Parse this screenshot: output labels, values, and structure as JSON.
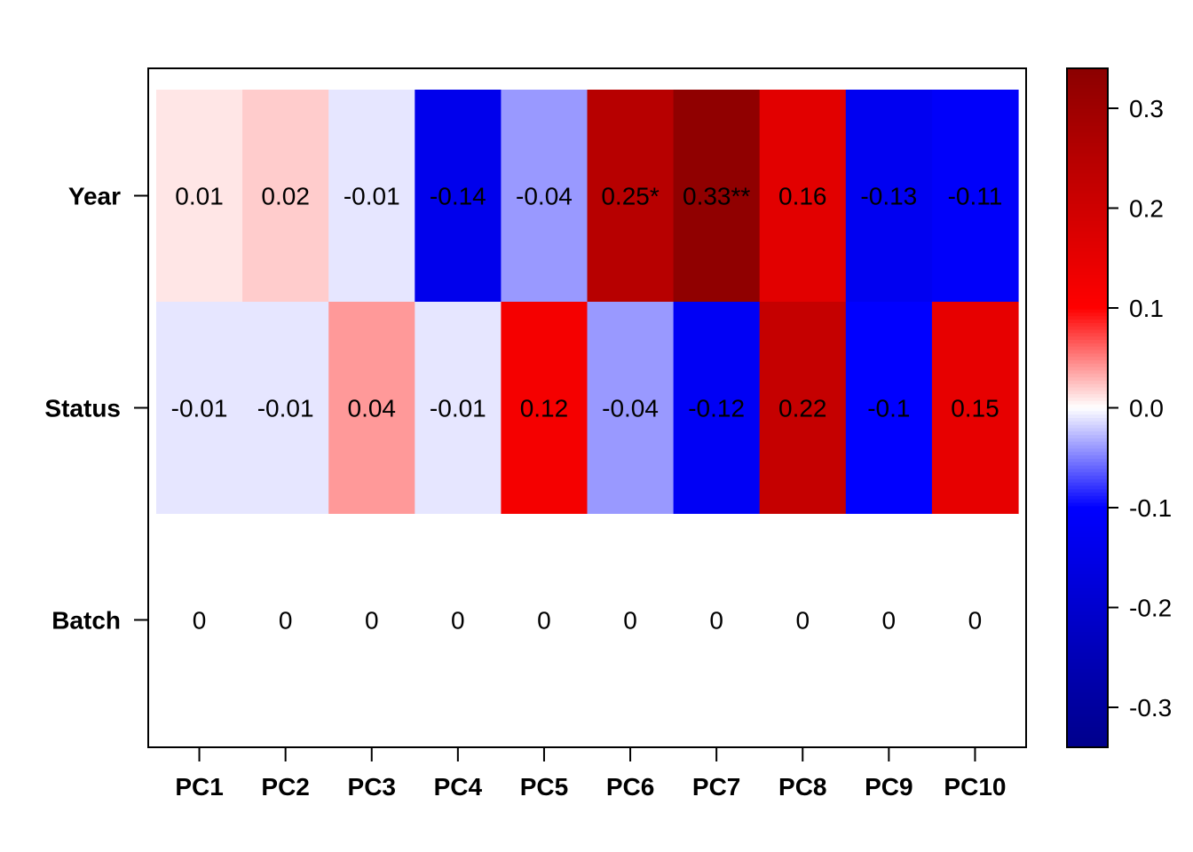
{
  "chart_data": {
    "type": "heatmap",
    "title": "",
    "xlabel": "",
    "ylabel": "",
    "x_categories": [
      "PC1",
      "PC2",
      "PC3",
      "PC4",
      "PC5",
      "PC6",
      "PC7",
      "PC8",
      "PC9",
      "PC10"
    ],
    "y_categories": [
      "Year",
      "Status",
      "Batch"
    ],
    "rows": [
      {
        "name": "Year",
        "values": [
          0.01,
          0.02,
          -0.01,
          -0.14,
          -0.04,
          0.25,
          0.33,
          0.16,
          -0.13,
          -0.11
        ],
        "labels": [
          "0.01",
          "0.02",
          "-0.01",
          "-0.14",
          "-0.04",
          "0.25*",
          "0.33**",
          "0.16",
          "-0.13",
          "-0.11"
        ]
      },
      {
        "name": "Status",
        "values": [
          -0.01,
          -0.01,
          0.04,
          -0.01,
          0.12,
          -0.04,
          -0.12,
          0.22,
          -0.1,
          0.15
        ],
        "labels": [
          "-0.01",
          "-0.01",
          "0.04",
          "-0.01",
          "0.12",
          "-0.04",
          "-0.12",
          "0.22",
          "-0.1",
          "0.15"
        ]
      },
      {
        "name": "Batch",
        "values": [
          0,
          0,
          0,
          0,
          0,
          0,
          0,
          0,
          0,
          0
        ],
        "labels": [
          "0",
          "0",
          "0",
          "0",
          "0",
          "0",
          "0",
          "0",
          "0",
          "0"
        ]
      }
    ],
    "colorbar": {
      "range": [
        -0.34,
        0.34
      ],
      "ticks": [
        -0.3,
        -0.2,
        -0.1,
        0.0,
        0.1,
        0.2,
        0.3
      ],
      "tick_labels": [
        "-0.3",
        "-0.2",
        "-0.1",
        "0.0",
        "0.1",
        "0.2",
        "0.3"
      ],
      "colors": {
        "neg_dark": "#00008b",
        "neg": "#0000ff",
        "zero": "#ffffff",
        "pos": "#ff0000",
        "pos_dark": "#8b0000"
      }
    },
    "grid": false,
    "legend": "right"
  }
}
